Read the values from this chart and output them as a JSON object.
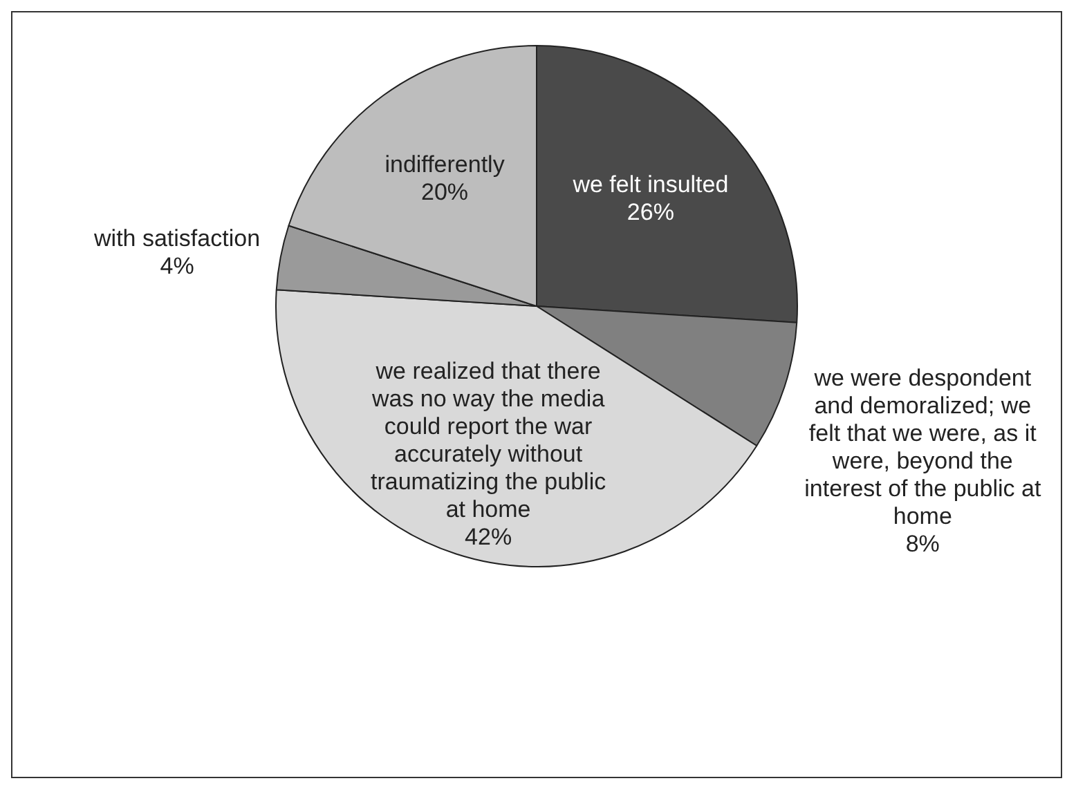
{
  "chart_data": {
    "type": "pie",
    "categories": [
      "we felt insulted",
      "we were despondent and demoralized; we felt that we were, as it were, beyond the interest of the public at home",
      "we realized that there was no way the media could report the war accurately without traumatizing the public at home",
      "with satisfaction",
      "indifferently"
    ],
    "values": [
      26,
      8,
      42,
      4,
      20
    ],
    "colors": [
      "#4a4a4a",
      "#808080",
      "#d9d9d9",
      "#9a9a9a",
      "#bdbdbd"
    ],
    "value_labels": [
      "26%",
      "8%",
      "42%",
      "4%",
      "20%"
    ],
    "legend": false
  }
}
